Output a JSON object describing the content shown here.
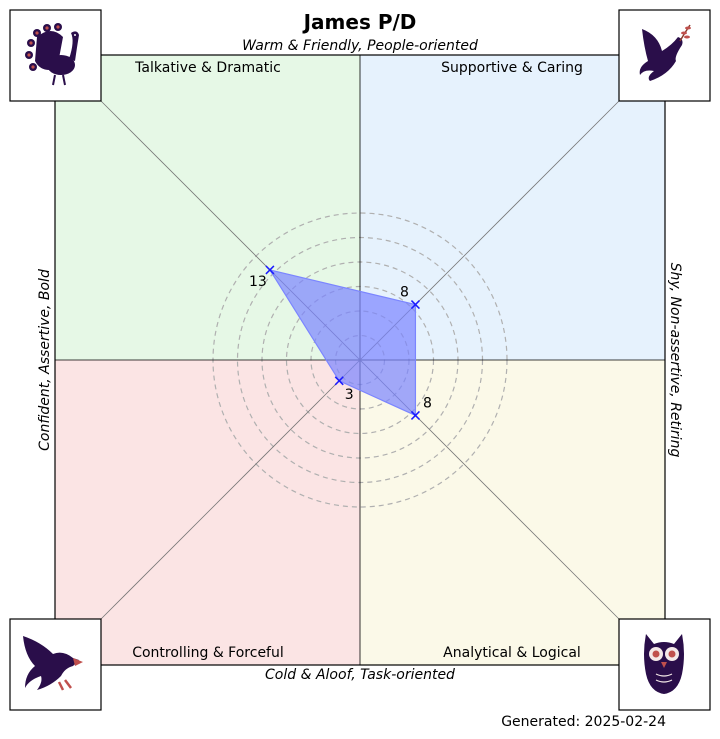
{
  "chart_data": {
    "type": "radar",
    "title": "James P/D",
    "axis_labels": {
      "top": "Warm & Friendly, People-oriented",
      "bottom": "Cold & Aloof, Task-oriented",
      "left": "Confident, Assertive, Bold",
      "right": "Shy, Non-assertive, Retiring"
    },
    "quadrants": [
      {
        "position": "top-left",
        "label": "Talkative & Dramatic",
        "color": "#e6f8e6",
        "icon": "peacock-icon"
      },
      {
        "position": "top-right",
        "label": "Supportive & Caring",
        "color": "#e6f2fd",
        "icon": "dove-icon"
      },
      {
        "position": "bottom-left",
        "label": "Controlling & Forceful",
        "color": "#fbe4e4",
        "icon": "eagle-icon"
      },
      {
        "position": "bottom-right",
        "label": "Analytical & Logical",
        "color": "#fbf9e8",
        "icon": "owl-icon"
      }
    ],
    "points": [
      {
        "quadrant": "top-left",
        "value": 13
      },
      {
        "quadrant": "top-right",
        "value": 8
      },
      {
        "quadrant": "bottom-right",
        "value": 8
      },
      {
        "quadrant": "bottom-left",
        "value": 3
      }
    ],
    "ring_step": 2.5,
    "ring_count": 6,
    "grid": true,
    "marker": "x",
    "fill_color": "#7b85ff",
    "marker_color": "#1a1aff",
    "footer": "Generated: 2025-02-24"
  }
}
